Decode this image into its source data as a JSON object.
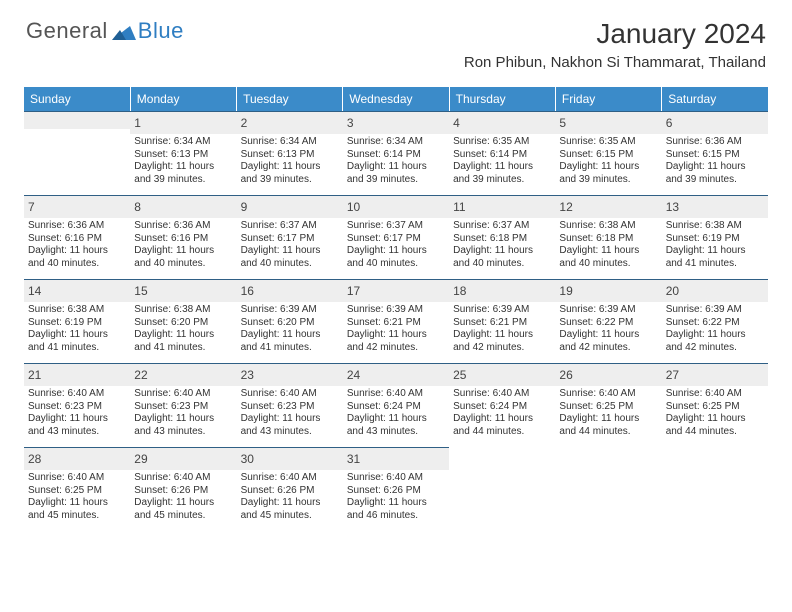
{
  "brand": {
    "part1": "General",
    "part2": "Blue"
  },
  "title": "January 2024",
  "location": "Ron Phibun, Nakhon Si Thammarat, Thailand",
  "colors": {
    "header_bg": "#3b8bc9",
    "header_text": "#ffffff",
    "daynum_bg": "#eeeeee",
    "row_divider": "#2f5f85",
    "brand_accent": "#2f7ec2",
    "body_text": "#333333"
  },
  "weekdays": [
    "Sunday",
    "Monday",
    "Tuesday",
    "Wednesday",
    "Thursday",
    "Friday",
    "Saturday"
  ],
  "weeks": [
    [
      null,
      {
        "day": "1",
        "sunrise": "Sunrise: 6:34 AM",
        "sunset": "Sunset: 6:13 PM",
        "daylight": "Daylight: 11 hours and 39 minutes."
      },
      {
        "day": "2",
        "sunrise": "Sunrise: 6:34 AM",
        "sunset": "Sunset: 6:13 PM",
        "daylight": "Daylight: 11 hours and 39 minutes."
      },
      {
        "day": "3",
        "sunrise": "Sunrise: 6:34 AM",
        "sunset": "Sunset: 6:14 PM",
        "daylight": "Daylight: 11 hours and 39 minutes."
      },
      {
        "day": "4",
        "sunrise": "Sunrise: 6:35 AM",
        "sunset": "Sunset: 6:14 PM",
        "daylight": "Daylight: 11 hours and 39 minutes."
      },
      {
        "day": "5",
        "sunrise": "Sunrise: 6:35 AM",
        "sunset": "Sunset: 6:15 PM",
        "daylight": "Daylight: 11 hours and 39 minutes."
      },
      {
        "day": "6",
        "sunrise": "Sunrise: 6:36 AM",
        "sunset": "Sunset: 6:15 PM",
        "daylight": "Daylight: 11 hours and 39 minutes."
      }
    ],
    [
      {
        "day": "7",
        "sunrise": "Sunrise: 6:36 AM",
        "sunset": "Sunset: 6:16 PM",
        "daylight": "Daylight: 11 hours and 40 minutes."
      },
      {
        "day": "8",
        "sunrise": "Sunrise: 6:36 AM",
        "sunset": "Sunset: 6:16 PM",
        "daylight": "Daylight: 11 hours and 40 minutes."
      },
      {
        "day": "9",
        "sunrise": "Sunrise: 6:37 AM",
        "sunset": "Sunset: 6:17 PM",
        "daylight": "Daylight: 11 hours and 40 minutes."
      },
      {
        "day": "10",
        "sunrise": "Sunrise: 6:37 AM",
        "sunset": "Sunset: 6:17 PM",
        "daylight": "Daylight: 11 hours and 40 minutes."
      },
      {
        "day": "11",
        "sunrise": "Sunrise: 6:37 AM",
        "sunset": "Sunset: 6:18 PM",
        "daylight": "Daylight: 11 hours and 40 minutes."
      },
      {
        "day": "12",
        "sunrise": "Sunrise: 6:38 AM",
        "sunset": "Sunset: 6:18 PM",
        "daylight": "Daylight: 11 hours and 40 minutes."
      },
      {
        "day": "13",
        "sunrise": "Sunrise: 6:38 AM",
        "sunset": "Sunset: 6:19 PM",
        "daylight": "Daylight: 11 hours and 41 minutes."
      }
    ],
    [
      {
        "day": "14",
        "sunrise": "Sunrise: 6:38 AM",
        "sunset": "Sunset: 6:19 PM",
        "daylight": "Daylight: 11 hours and 41 minutes."
      },
      {
        "day": "15",
        "sunrise": "Sunrise: 6:38 AM",
        "sunset": "Sunset: 6:20 PM",
        "daylight": "Daylight: 11 hours and 41 minutes."
      },
      {
        "day": "16",
        "sunrise": "Sunrise: 6:39 AM",
        "sunset": "Sunset: 6:20 PM",
        "daylight": "Daylight: 11 hours and 41 minutes."
      },
      {
        "day": "17",
        "sunrise": "Sunrise: 6:39 AM",
        "sunset": "Sunset: 6:21 PM",
        "daylight": "Daylight: 11 hours and 42 minutes."
      },
      {
        "day": "18",
        "sunrise": "Sunrise: 6:39 AM",
        "sunset": "Sunset: 6:21 PM",
        "daylight": "Daylight: 11 hours and 42 minutes."
      },
      {
        "day": "19",
        "sunrise": "Sunrise: 6:39 AM",
        "sunset": "Sunset: 6:22 PM",
        "daylight": "Daylight: 11 hours and 42 minutes."
      },
      {
        "day": "20",
        "sunrise": "Sunrise: 6:39 AM",
        "sunset": "Sunset: 6:22 PM",
        "daylight": "Daylight: 11 hours and 42 minutes."
      }
    ],
    [
      {
        "day": "21",
        "sunrise": "Sunrise: 6:40 AM",
        "sunset": "Sunset: 6:23 PM",
        "daylight": "Daylight: 11 hours and 43 minutes."
      },
      {
        "day": "22",
        "sunrise": "Sunrise: 6:40 AM",
        "sunset": "Sunset: 6:23 PM",
        "daylight": "Daylight: 11 hours and 43 minutes."
      },
      {
        "day": "23",
        "sunrise": "Sunrise: 6:40 AM",
        "sunset": "Sunset: 6:23 PM",
        "daylight": "Daylight: 11 hours and 43 minutes."
      },
      {
        "day": "24",
        "sunrise": "Sunrise: 6:40 AM",
        "sunset": "Sunset: 6:24 PM",
        "daylight": "Daylight: 11 hours and 43 minutes."
      },
      {
        "day": "25",
        "sunrise": "Sunrise: 6:40 AM",
        "sunset": "Sunset: 6:24 PM",
        "daylight": "Daylight: 11 hours and 44 minutes."
      },
      {
        "day": "26",
        "sunrise": "Sunrise: 6:40 AM",
        "sunset": "Sunset: 6:25 PM",
        "daylight": "Daylight: 11 hours and 44 minutes."
      },
      {
        "day": "27",
        "sunrise": "Sunrise: 6:40 AM",
        "sunset": "Sunset: 6:25 PM",
        "daylight": "Daylight: 11 hours and 44 minutes."
      }
    ],
    [
      {
        "day": "28",
        "sunrise": "Sunrise: 6:40 AM",
        "sunset": "Sunset: 6:25 PM",
        "daylight": "Daylight: 11 hours and 45 minutes."
      },
      {
        "day": "29",
        "sunrise": "Sunrise: 6:40 AM",
        "sunset": "Sunset: 6:26 PM",
        "daylight": "Daylight: 11 hours and 45 minutes."
      },
      {
        "day": "30",
        "sunrise": "Sunrise: 6:40 AM",
        "sunset": "Sunset: 6:26 PM",
        "daylight": "Daylight: 11 hours and 45 minutes."
      },
      {
        "day": "31",
        "sunrise": "Sunrise: 6:40 AM",
        "sunset": "Sunset: 6:26 PM",
        "daylight": "Daylight: 11 hours and 46 minutes."
      },
      null,
      null,
      null
    ]
  ]
}
